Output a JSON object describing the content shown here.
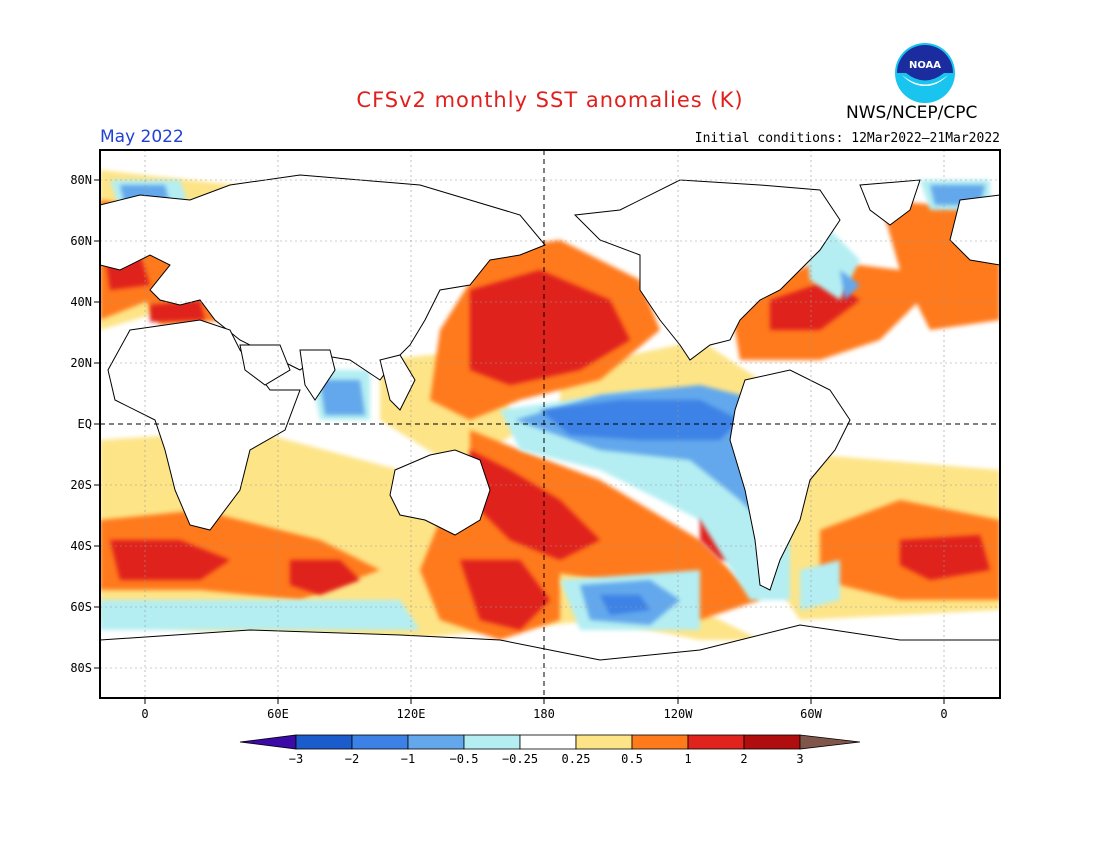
{
  "header": {
    "title": "CFSv2 monthly SST anomalies (K)",
    "month": "May 2022",
    "initial_conditions": "Initial conditions: 12Mar2022–21Mar2022",
    "agency": "NWS/NCEP/CPC",
    "logo_text": "NOAA"
  },
  "map": {
    "projection": "equirectangular",
    "lon_labels": [
      "0",
      "60E",
      "120E",
      "180",
      "120W",
      "60W",
      "0"
    ],
    "lat_labels": [
      "80N",
      "60N",
      "40N",
      "20N",
      "EQ",
      "20S",
      "40S",
      "60S",
      "80S"
    ],
    "reference_lines": [
      "EQ",
      "180"
    ]
  },
  "legend": {
    "labels": [
      "−3",
      "−2",
      "−1",
      "−0.5",
      "−0.25",
      "0.25",
      "0.5",
      "1",
      "2",
      "3"
    ],
    "colors": {
      "below_-3": "#3c0aa6",
      "-3_-2": "#1a5ccc",
      "-2_-1": "#3c82e6",
      "-1_-0.5": "#64a8ec",
      "-0.5_-0.25": "#b4eef2",
      "-0.25_0.25": "#ffffff",
      "0.25_0.5": "#fde487",
      "0.5_1": "#ff7a1a",
      "1_2": "#e0231c",
      "2_3": "#b00e0e",
      "above_3": "#80564a"
    }
  }
}
